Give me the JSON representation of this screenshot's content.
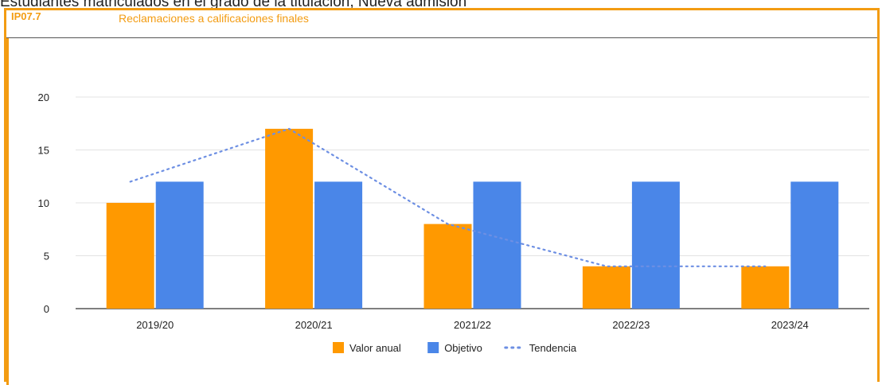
{
  "page": {
    "clipped_text": "Estudiantes matriculados en el grado de la titulación, Nueva admisión"
  },
  "header": {
    "code": "IP07.7",
    "title": "Reclamaciones a calificaciones finales"
  },
  "chart_data": {
    "type": "bar",
    "title": "Reclamaciones a calificaciones finales",
    "categories": [
      "2019/20",
      "2020/21",
      "2021/22",
      "2022/23",
      "2023/24"
    ],
    "series": [
      {
        "name": "Valor anual",
        "type": "bar",
        "color": "#ff9900",
        "values": [
          10,
          17,
          8,
          4,
          4
        ]
      },
      {
        "name": "Objetivo",
        "type": "bar",
        "color": "#4a86e8",
        "values": [
          12,
          12,
          12,
          12,
          12
        ]
      },
      {
        "name": "Tendencia",
        "type": "line",
        "style": "dotted",
        "color": "#6d8fe3",
        "values": [
          12,
          17,
          8,
          4,
          4
        ]
      }
    ],
    "xlabel": "",
    "ylabel": "",
    "ylim": [
      0,
      20
    ],
    "yticks": [
      0,
      5,
      10,
      15,
      20
    ],
    "grid": true,
    "legend_position": "bottom"
  }
}
